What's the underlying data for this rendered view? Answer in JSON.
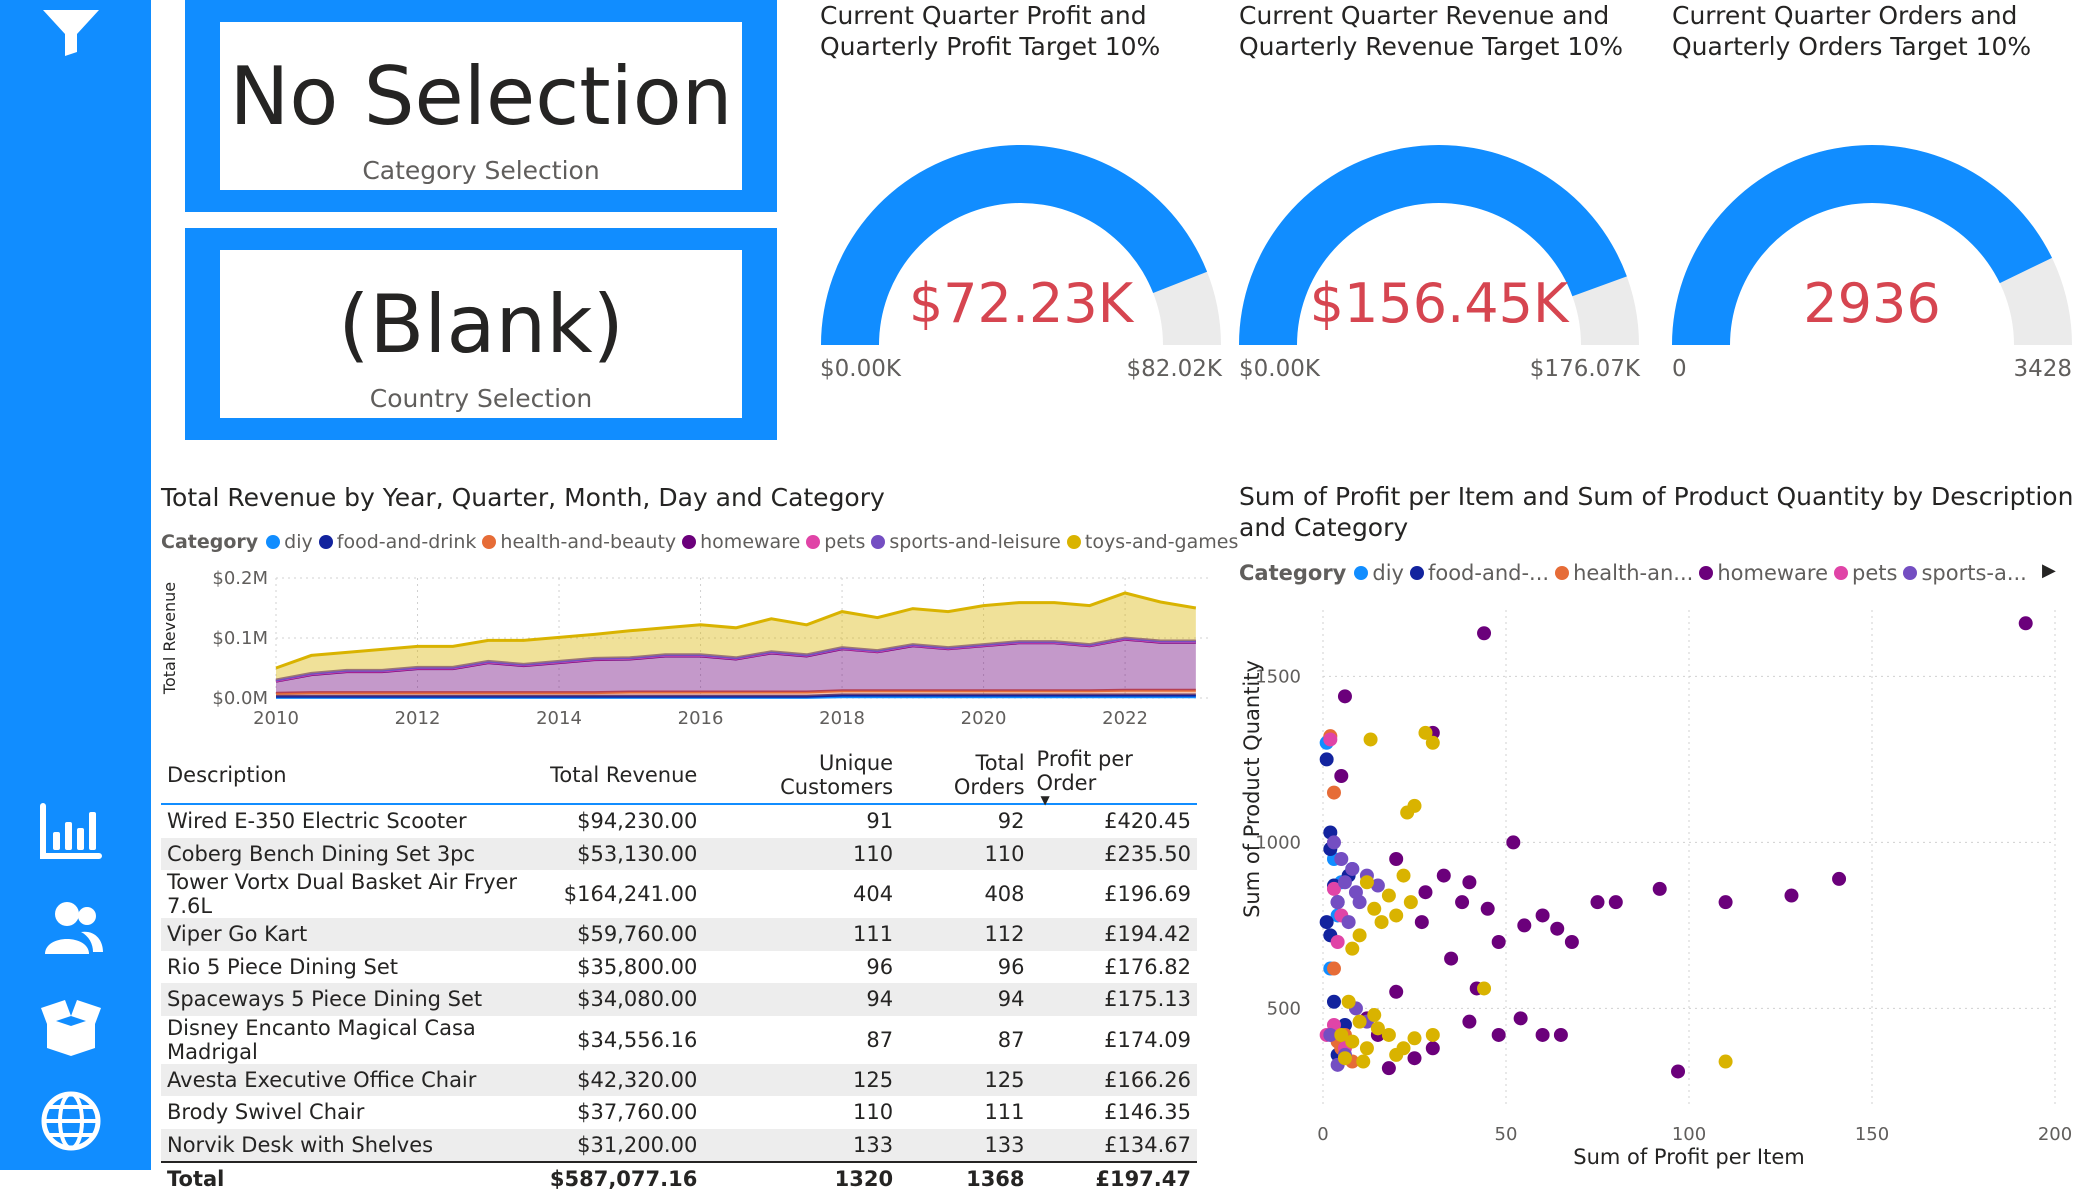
{
  "colors": {
    "accent": "#118DFF",
    "gauge_fill": "#118DFF",
    "gauge_track": "#EBEBEB",
    "gauge_value": "#D64550",
    "categories": {
      "diy": "#118DFF",
      "food-and-drink": "#12239E",
      "health-and-beauty": "#E66C37",
      "homeware": "#6B007B",
      "pets": "#E044A7",
      "sports-and-leisure": "#744EC2",
      "toys-and-games": "#D9B300"
    }
  },
  "sidebar": {
    "icons": [
      "filter-icon",
      "bar-chart-icon",
      "users-icon",
      "box-icon",
      "globe-icon"
    ]
  },
  "cards": {
    "category": {
      "value": "No Selection",
      "label": "Category Selection"
    },
    "country": {
      "value": "(Blank)",
      "label": "Country Selection"
    }
  },
  "gauges": [
    {
      "title": "Current Quarter Profit and Quarterly Profit Target 10%",
      "value_label": "$72.23K",
      "min_label": "$0.00K",
      "max_label": "$82.02K",
      "value": 72.23,
      "max": 82.02
    },
    {
      "title": "Current Quarter Revenue and Quarterly Revenue Target 10%",
      "value_label": "$156.45K",
      "min_label": "$0.00K",
      "max_label": "$176.07K",
      "value": 156.45,
      "max": 176.07
    },
    {
      "title": "Current Quarter Orders and Quarterly Orders Target 10%",
      "value_label": "2936",
      "min_label": "0",
      "max_label": "3428",
      "value": 2936,
      "max": 3428
    }
  ],
  "area_chart": {
    "title": "Total Revenue by Year, Quarter, Month, Day and Category",
    "legend_title": "Category",
    "legend": [
      "diy",
      "food-and-drink",
      "health-and-beauty",
      "homeware",
      "pets",
      "sports-and-leisure",
      "toys-and-games"
    ],
    "ylabel": "Total Revenue",
    "y_ticks": [
      "$0.0M",
      "$0.1M",
      "$0.2M"
    ],
    "x_ticks": [
      "2010",
      "2012",
      "2014",
      "2016",
      "2018",
      "2020",
      "2022"
    ]
  },
  "table": {
    "columns": [
      "Description",
      "Total Revenue",
      "Unique Customers",
      "Total Orders",
      "Profit per Order"
    ],
    "rows": [
      [
        "Wired E-350 Electric Scooter",
        "$94,230.00",
        "91",
        "92",
        "£420.45"
      ],
      [
        "Coberg Bench Dining Set 3pc",
        "$53,130.00",
        "110",
        "110",
        "£235.50"
      ],
      [
        "Tower Vortx Dual Basket Air Fryer 7.6L",
        "$164,241.00",
        "404",
        "408",
        "£196.69"
      ],
      [
        "Viper Go Kart",
        "$59,760.00",
        "111",
        "112",
        "£194.42"
      ],
      [
        "Rio 5 Piece Dining Set",
        "$35,800.00",
        "96",
        "96",
        "£176.82"
      ],
      [
        "Spaceways 5 Piece Dining Set",
        "$34,080.00",
        "94",
        "94",
        "£175.13"
      ],
      [
        "Disney Encanto Magical Casa Madrigal",
        "$34,556.16",
        "87",
        "87",
        "£174.09"
      ],
      [
        "Avesta Executive Office Chair",
        "$42,320.00",
        "125",
        "125",
        "£166.26"
      ],
      [
        "Brody Swivel Chair",
        "$37,760.00",
        "110",
        "111",
        "£146.35"
      ],
      [
        "Norvik Desk with Shelves",
        "$31,200.00",
        "133",
        "133",
        "£134.67"
      ]
    ],
    "total": [
      "Total",
      "$587,077.16",
      "1320",
      "1368",
      "£197.47"
    ]
  },
  "scatter_chart": {
    "title_line1": "Sum of Profit per Item and Sum of Product Quantity by Description",
    "title_line2": "and Category",
    "legend_title": "Category",
    "legend": [
      "diy",
      "food-and-...",
      "health-an...",
      "homeware",
      "pets",
      "sports-a..."
    ],
    "xlabel": "Sum of Profit per Item",
    "ylabel": "Sum of Product Quantity",
    "x_ticks": [
      "0",
      "50",
      "100",
      "150",
      "200"
    ],
    "y_ticks": [
      "500",
      "1000",
      "1500"
    ]
  },
  "chart_data": [
    {
      "type": "area",
      "title": "Total Revenue by Year, Quarter, Month, Day and Category",
      "ylabel": "Total Revenue",
      "ylim": [
        0,
        0.2
      ],
      "x": [
        2010,
        2010.5,
        2011,
        2011.5,
        2012,
        2012.5,
        2013,
        2013.5,
        2014,
        2014.5,
        2015,
        2015.5,
        2016,
        2016.5,
        2017,
        2017.5,
        2018,
        2018.5,
        2019,
        2019.5,
        2020,
        2020.5,
        2021,
        2021.5,
        2022,
        2022.5,
        2023
      ],
      "series": [
        {
          "name": "diy",
          "values": [
            0.001,
            0.001,
            0.001,
            0.001,
            0.001,
            0.001,
            0.001,
            0.001,
            0.001,
            0.001,
            0.001,
            0.001,
            0.001,
            0.001,
            0.001,
            0.001,
            0.002,
            0.002,
            0.002,
            0.002,
            0.002,
            0.002,
            0.002,
            0.002,
            0.002,
            0.002,
            0.002
          ]
        },
        {
          "name": "food-and-drink",
          "values": [
            0.002,
            0.002,
            0.002,
            0.002,
            0.002,
            0.002,
            0.002,
            0.002,
            0.002,
            0.002,
            0.002,
            0.002,
            0.002,
            0.002,
            0.002,
            0.002,
            0.003,
            0.003,
            0.003,
            0.003,
            0.003,
            0.003,
            0.003,
            0.003,
            0.003,
            0.003,
            0.003
          ]
        },
        {
          "name": "health-and-beauty",
          "values": [
            0.005,
            0.006,
            0.006,
            0.006,
            0.006,
            0.006,
            0.006,
            0.006,
            0.006,
            0.006,
            0.007,
            0.007,
            0.007,
            0.007,
            0.007,
            0.007,
            0.007,
            0.007,
            0.007,
            0.007,
            0.007,
            0.007,
            0.007,
            0.007,
            0.008,
            0.008,
            0.008
          ]
        },
        {
          "name": "homeware",
          "values": [
            0.02,
            0.03,
            0.035,
            0.035,
            0.04,
            0.04,
            0.05,
            0.045,
            0.05,
            0.055,
            0.055,
            0.06,
            0.06,
            0.055,
            0.065,
            0.06,
            0.07,
            0.065,
            0.075,
            0.07,
            0.075,
            0.08,
            0.08,
            0.075,
            0.085,
            0.08,
            0.08
          ]
        },
        {
          "name": "pets",
          "values": [
            0.001,
            0.001,
            0.001,
            0.001,
            0.001,
            0.001,
            0.001,
            0.001,
            0.001,
            0.001,
            0.001,
            0.001,
            0.001,
            0.001,
            0.001,
            0.001,
            0.001,
            0.001,
            0.001,
            0.001,
            0.001,
            0.001,
            0.001,
            0.001,
            0.001,
            0.001,
            0.001
          ]
        },
        {
          "name": "sports-and-leisure",
          "values": [
            0.001,
            0.001,
            0.001,
            0.001,
            0.001,
            0.001,
            0.001,
            0.001,
            0.001,
            0.001,
            0.001,
            0.001,
            0.001,
            0.001,
            0.001,
            0.001,
            0.001,
            0.001,
            0.001,
            0.001,
            0.001,
            0.001,
            0.001,
            0.001,
            0.001,
            0.001,
            0.001
          ]
        },
        {
          "name": "toys-and-games",
          "values": [
            0.02,
            0.03,
            0.03,
            0.035,
            0.035,
            0.035,
            0.035,
            0.04,
            0.04,
            0.04,
            0.045,
            0.045,
            0.05,
            0.05,
            0.055,
            0.05,
            0.06,
            0.055,
            0.06,
            0.06,
            0.065,
            0.065,
            0.065,
            0.065,
            0.075,
            0.065,
            0.055
          ]
        }
      ]
    },
    {
      "type": "scatter",
      "title": "Sum of Profit per Item and Sum of Product Quantity by Description and Category",
      "xlabel": "Sum of Profit per Item",
      "ylabel": "Sum of Product Quantity",
      "xlim": [
        0,
        200
      ],
      "ylim": [
        200,
        1700
      ],
      "series": [
        {
          "name": "diy",
          "points": [
            [
              1,
              1300
            ],
            [
              3,
              950
            ],
            [
              5,
              880
            ],
            [
              2,
              620
            ],
            [
              4,
              780
            ],
            [
              8,
              920
            ]
          ]
        },
        {
          "name": "food-and-drink",
          "points": [
            [
              1,
              1250
            ],
            [
              2,
              980
            ],
            [
              3,
              870
            ],
            [
              4,
              820
            ],
            [
              1,
              760
            ],
            [
              2,
              720
            ],
            [
              5,
              400
            ],
            [
              6,
              450
            ],
            [
              3,
              520
            ],
            [
              4,
              360
            ],
            [
              7,
              900
            ],
            [
              2,
              1030
            ]
          ]
        },
        {
          "name": "health-and-beauty",
          "points": [
            [
              2,
              1320
            ],
            [
              3,
              1150
            ],
            [
              4,
              400
            ],
            [
              6,
              420
            ],
            [
              5,
              380
            ],
            [
              8,
              340
            ],
            [
              3,
              620
            ]
          ]
        },
        {
          "name": "homeware",
          "points": [
            [
              192,
              1660
            ],
            [
              44,
              1630
            ],
            [
              6,
              1440
            ],
            [
              30,
              1330
            ],
            [
              5,
              1200
            ],
            [
              52,
              1000
            ],
            [
              20,
              950
            ],
            [
              33,
              900
            ],
            [
              40,
              880
            ],
            [
              28,
              850
            ],
            [
              45,
              800
            ],
            [
              60,
              780
            ],
            [
              75,
              820
            ],
            [
              92,
              860
            ],
            [
              110,
              820
            ],
            [
              128,
              840
            ],
            [
              141,
              890
            ],
            [
              55,
              750
            ],
            [
              48,
              700
            ],
            [
              35,
              650
            ],
            [
              20,
              550
            ],
            [
              42,
              560
            ],
            [
              54,
              470
            ],
            [
              60,
              420
            ],
            [
              65,
              420
            ],
            [
              48,
              420
            ],
            [
              40,
              460
            ],
            [
              30,
              380
            ],
            [
              25,
              350
            ],
            [
              18,
              320
            ],
            [
              97,
              310
            ],
            [
              15,
              420
            ],
            [
              12,
              470
            ],
            [
              38,
              820
            ],
            [
              27,
              760
            ],
            [
              64,
              740
            ],
            [
              68,
              700
            ],
            [
              80,
              820
            ]
          ]
        },
        {
          "name": "pets",
          "points": [
            [
              2,
              1310
            ],
            [
              3,
              860
            ],
            [
              4,
              700
            ],
            [
              3,
              450
            ],
            [
              6,
              380
            ],
            [
              1,
              420
            ],
            [
              5,
              780
            ]
          ]
        },
        {
          "name": "sports-and-leisure",
          "points": [
            [
              3,
              1000
            ],
            [
              5,
              950
            ],
            [
              8,
              920
            ],
            [
              12,
              900
            ],
            [
              6,
              880
            ],
            [
              9,
              850
            ],
            [
              4,
              820
            ],
            [
              15,
              870
            ],
            [
              10,
              820
            ],
            [
              7,
              760
            ],
            [
              2,
              420
            ],
            [
              6,
              360
            ],
            [
              9,
              500
            ],
            [
              12,
              460
            ],
            [
              4,
              330
            ]
          ]
        },
        {
          "name": "toys-and-games",
          "points": [
            [
              28,
              1330
            ],
            [
              30,
              1300
            ],
            [
              13,
              1310
            ],
            [
              25,
              1110
            ],
            [
              23,
              1090
            ],
            [
              12,
              880
            ],
            [
              18,
              840
            ],
            [
              14,
              800
            ],
            [
              20,
              780
            ],
            [
              16,
              760
            ],
            [
              24,
              820
            ],
            [
              10,
              720
            ],
            [
              22,
              900
            ],
            [
              8,
              680
            ],
            [
              5,
              420
            ],
            [
              8,
              400
            ],
            [
              12,
              380
            ],
            [
              15,
              440
            ],
            [
              10,
              460
            ],
            [
              18,
              420
            ],
            [
              6,
              350
            ],
            [
              20,
              360
            ],
            [
              14,
              480
            ],
            [
              7,
              520
            ],
            [
              11,
              340
            ],
            [
              25,
              410
            ],
            [
              30,
              420
            ],
            [
              22,
              380
            ],
            [
              44,
              560
            ],
            [
              110,
              340
            ]
          ]
        }
      ]
    }
  ]
}
